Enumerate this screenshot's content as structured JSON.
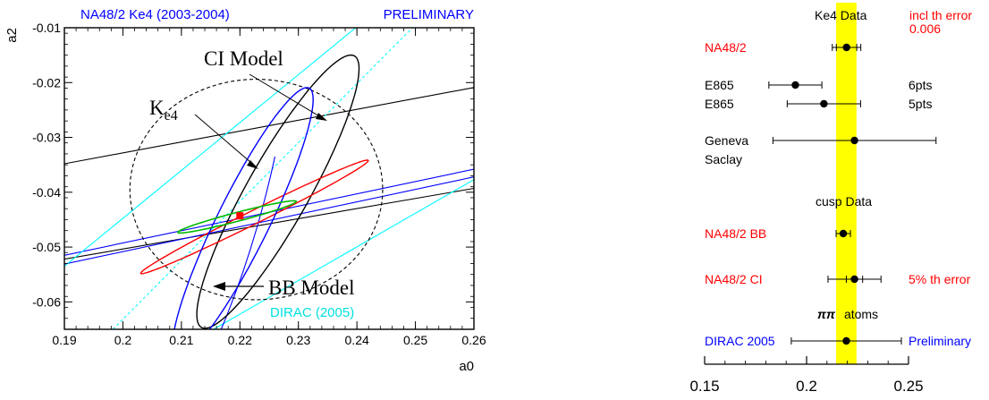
{
  "chart_data": [
    {
      "type": "contour",
      "title_left": "NA48/2 Ke4 (2003-2004)",
      "title_right": "PRELIMINARY",
      "xlabel": "a0",
      "ylabel": "a2",
      "xlim": [
        0.19,
        0.26
      ],
      "ylim": [
        -0.065,
        -0.01
      ],
      "xticks": [
        0.19,
        0.2,
        0.21,
        0.22,
        0.23,
        0.24,
        0.25,
        0.26
      ],
      "yticks": [
        -0.06,
        -0.05,
        -0.04,
        -0.03,
        -0.02,
        -0.01
      ],
      "annotations": {
        "ci_model": "CI Model",
        "ke4_main": "K",
        "ke4_sub": "e4",
        "bb_model": "BB Model",
        "dirac": "DIRAC (2005)"
      },
      "colors": {
        "frame": "#000000",
        "title": "#0000ff",
        "red": "#ff0000",
        "blue": "#0000ff",
        "green": "#00bb00",
        "cyan": "#00ffff",
        "dirac_label": "#00e0e0"
      },
      "best_fit": {
        "x": 0.22,
        "y": -0.0443
      },
      "regions": {
        "ke4_ellipse": {
          "cx": 0.2225,
          "cy": -0.0445,
          "a": 0.022,
          "b": 0.0012,
          "slope": 0.53
        },
        "ci_ellipse": {
          "cx": 0.2265,
          "cy": -0.0399,
          "a": 0.028,
          "b": 0.0054,
          "slope": 1.905
        },
        "bb_ellipse": {
          "cx": 0.2205,
          "cy": -0.0455,
          "a": 0.027,
          "b": 0.0045,
          "slope": 2.17
        },
        "dashed_ellipse": {
          "cx": 0.2228,
          "cy": -0.0395,
          "rx": 0.0216,
          "ry": 0.0201
        },
        "green_ellipse": {
          "cx": 0.2195,
          "cy": -0.0445,
          "a": 0.0105,
          "b": 0.0008,
          "slope": 0.28
        }
      },
      "lines": [
        {
          "color": "black",
          "x": [
            0.19,
            0.26
          ],
          "y": [
            -0.0348,
            -0.0209
          ]
        },
        {
          "color": "black",
          "x": [
            0.19,
            0.26
          ],
          "y": [
            -0.0522,
            -0.0393
          ]
        },
        {
          "color": "blue",
          "x": [
            0.19,
            0.26
          ],
          "y": [
            -0.0515,
            -0.0358
          ]
        },
        {
          "color": "blue",
          "x": [
            0.19,
            0.26
          ],
          "y": [
            -0.0531,
            -0.0372
          ]
        },
        {
          "color": "cyan",
          "x": [
            0.19,
            0.2398
          ],
          "y": [
            -0.0535,
            -0.01
          ]
        },
        {
          "color": "cyan",
          "x": [
            0.2155,
            0.26
          ],
          "y": [
            -0.065,
            -0.0377
          ]
        },
        {
          "color": "cyan-dashed",
          "x": [
            0.1983,
            0.2495
          ],
          "y": [
            -0.065,
            -0.01
          ]
        },
        {
          "color": "blue-curve",
          "x": [
            0.2168,
            0.2225,
            0.226
          ],
          "y": [
            -0.065,
            -0.0505,
            -0.0335
          ]
        }
      ]
    },
    {
      "type": "error_bar",
      "xlim": [
        0.15,
        0.25
      ],
      "xticks": [
        0.15,
        0.2,
        0.25
      ],
      "band": {
        "xmin": 0.2145,
        "xmax": 0.2245,
        "color": "#ffff00"
      },
      "headers": {
        "ke4_data": "Ke4 Data",
        "incl_th_error": "incl th error",
        "incl_th_error_value": "0.006",
        "cusp_data": "cusp Data",
        "pipi_symbol": "ππ",
        "atoms": "atoms"
      },
      "points": [
        {
          "label": "NA48/2",
          "label_color": "#ff0000",
          "value": 0.2196,
          "lo": 0.2126,
          "hi": 0.2266,
          "inner_lo": 0.2146,
          "inner_hi": 0.2246,
          "right_note": ""
        },
        {
          "label": "E865",
          "label_color": "#000000",
          "value": 0.1945,
          "lo": 0.1815,
          "hi": 0.2075,
          "right_note": "6pts"
        },
        {
          "label": "E865",
          "label_color": "#000000",
          "value": 0.2085,
          "lo": 0.1905,
          "hi": 0.2265,
          "right_note": "5pts"
        },
        {
          "label": "Geneva",
          "label2": "Saclay",
          "label_color": "#000000",
          "value": 0.2235,
          "lo": 0.1835,
          "hi": 0.2635,
          "right_note": ""
        },
        {
          "label": "NA48/2 BB",
          "label_color": "#ff0000",
          "value": 0.218,
          "lo": 0.2145,
          "hi": 0.2215,
          "right_note": ""
        },
        {
          "label": "NA48/2 CI",
          "label_color": "#ff0000",
          "value": 0.2235,
          "lo": 0.2105,
          "hi": 0.2365,
          "inner_lo": 0.2195,
          "inner_hi": 0.2275,
          "right_note": "5% th error",
          "right_color": "#ff0000"
        },
        {
          "label": "DIRAC 2005",
          "label_color": "#0000ff",
          "value": 0.2195,
          "lo": 0.1925,
          "hi": 0.2465,
          "right_note": "Preliminary",
          "right_color": "#0000ff"
        }
      ]
    }
  ]
}
